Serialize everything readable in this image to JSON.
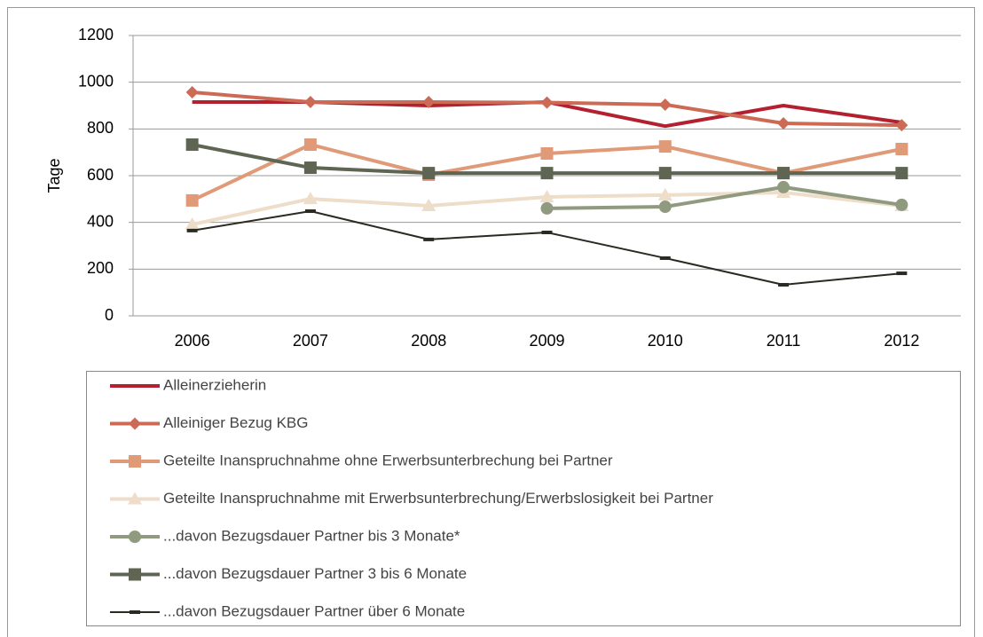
{
  "chart_data": {
    "type": "line",
    "y_label": "Tage",
    "categories": [
      "2006",
      "2007",
      "2008",
      "2009",
      "2010",
      "2011",
      "2012"
    ],
    "ylim": [
      0,
      1200
    ],
    "yticks": [
      0,
      200,
      400,
      600,
      800,
      1000,
      1200
    ],
    "grid": true,
    "series": [
      {
        "name": "Alleinerzieherin",
        "color": "#b3202f",
        "marker": "none",
        "values": [
          915,
          915,
          900,
          915,
          812,
          900,
          828
        ]
      },
      {
        "name": "Alleiniger Bezug KBG",
        "color": "#cd6a55",
        "marker": "diamond",
        "values": [
          957,
          915,
          915,
          913,
          904,
          824,
          816
        ]
      },
      {
        "name": "Geteilte Inanspruchnahme ohne Erwerbsunterbrechung bei Partner",
        "color": "#e09a78",
        "marker": "square",
        "values": [
          494,
          733,
          604,
          695,
          725,
          611,
          714
        ]
      },
      {
        "name": "Geteilte Inanspruchnahme mit Erwerbsunterbrechung/Erwerbslosigkeit bei Partner",
        "color": "#eeddc8",
        "marker": "triangle",
        "values": [
          391,
          501,
          471,
          509,
          517,
          528,
          471
        ]
      },
      {
        "name": "...davon Bezugsdauer Partner bis 3 Monate*",
        "color": "#8f9a7e",
        "marker": "circle",
        "values": [
          null,
          null,
          null,
          460,
          467,
          551,
          475
        ]
      },
      {
        "name": "...davon Bezugsdauer Partner 3 bis 6 Monate",
        "color": "#5e6552",
        "marker": "square",
        "values": [
          733,
          634,
          611,
          611,
          611,
          611,
          611
        ]
      },
      {
        "name": "...davon Bezugsdauer Partner über 6 Monate",
        "color": "#2a2a22",
        "marker": "dash",
        "values": [
          365,
          448,
          327,
          357,
          247,
          133,
          182
        ]
      }
    ]
  }
}
